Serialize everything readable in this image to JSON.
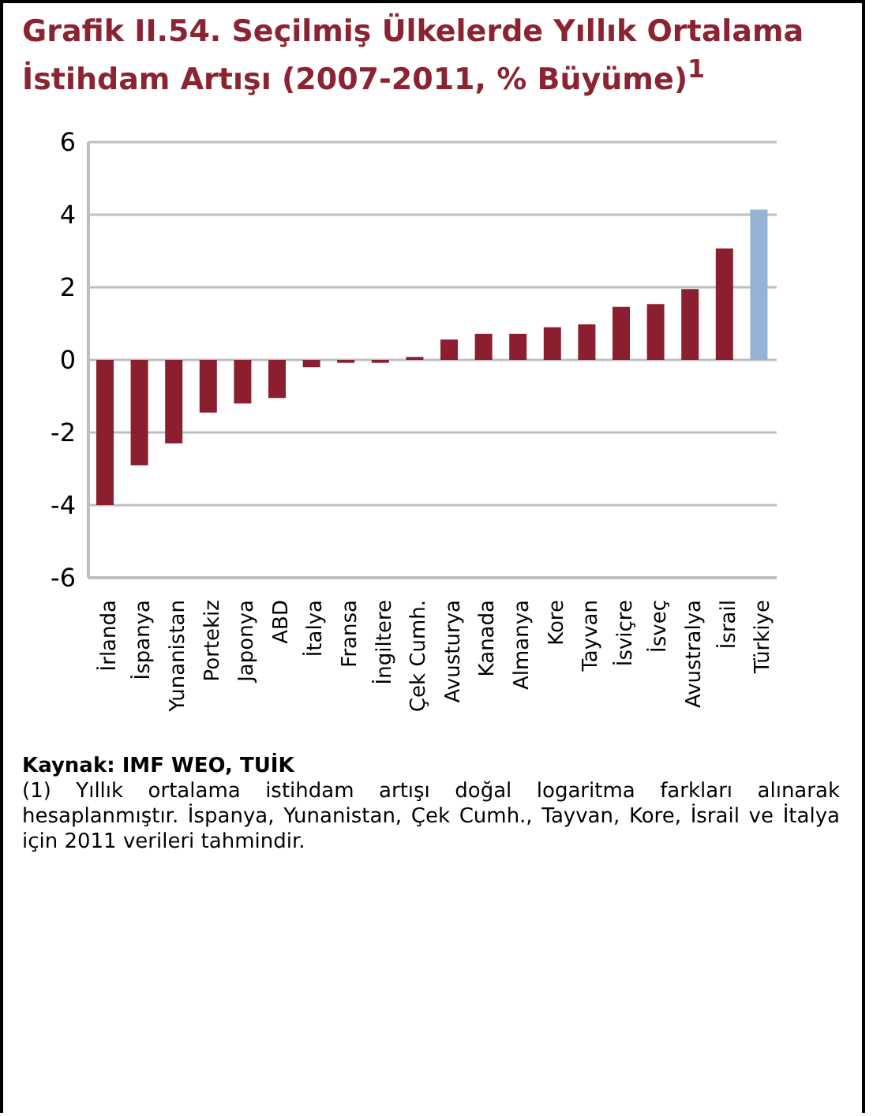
{
  "chart_data": {
    "type": "bar",
    "title": "Grafik II.54. Seçilmiş Ülkelerde Yıllık Ortalama İstihdam Artışı (2007-2011, % Büyüme)$^{1}$",
    "categories": [
      "İrlanda",
      "İspanya",
      "Yunanistan",
      "Portekiz",
      "Japonya",
      "ABD",
      "İtalya",
      "Fransa",
      "İngiltere",
      "Çek Cumh.",
      "Avusturya",
      "Kanada",
      "Almanya",
      "Kore",
      "Tayvan",
      "İsviçre",
      "İsveç",
      "Avustralya",
      "İsrail",
      "Türkiye"
    ],
    "values": [
      -4.0,
      -2.9,
      -2.3,
      -1.45,
      -1.2,
      -1.05,
      -0.2,
      -0.08,
      -0.08,
      0.08,
      0.56,
      0.72,
      0.72,
      0.9,
      0.98,
      1.46,
      1.54,
      1.95,
      3.07,
      4.14
    ],
    "colors": [
      "#8b1e2f",
      "#8b1e2f",
      "#8b1e2f",
      "#8b1e2f",
      "#8b1e2f",
      "#8b1e2f",
      "#8b1e2f",
      "#8b1e2f",
      "#8b1e2f",
      "#8b1e2f",
      "#8b1e2f",
      "#8b1e2f",
      "#8b1e2f",
      "#8b1e2f",
      "#8b1e2f",
      "#8b1e2f",
      "#8b1e2f",
      "#8b1e2f",
      "#8b1e2f",
      "#95b3d7"
    ],
    "ylim": [
      -6,
      6
    ],
    "yticks": [
      -6,
      -4,
      -2,
      0,
      2,
      4,
      6
    ],
    "grid": "y",
    "annotations": [
      "Kaynak: IMF WEO, TUİK",
      "(1) Yıllık ortalama istihdam artışı doğal logaritma farkları alınarak hesaplanmıştır. İspanya, Yunanistan, Çek Cumh., Tayvan, Kore, İsrail ve İtalya için 2011 verileri tahmindir."
    ]
  }
}
